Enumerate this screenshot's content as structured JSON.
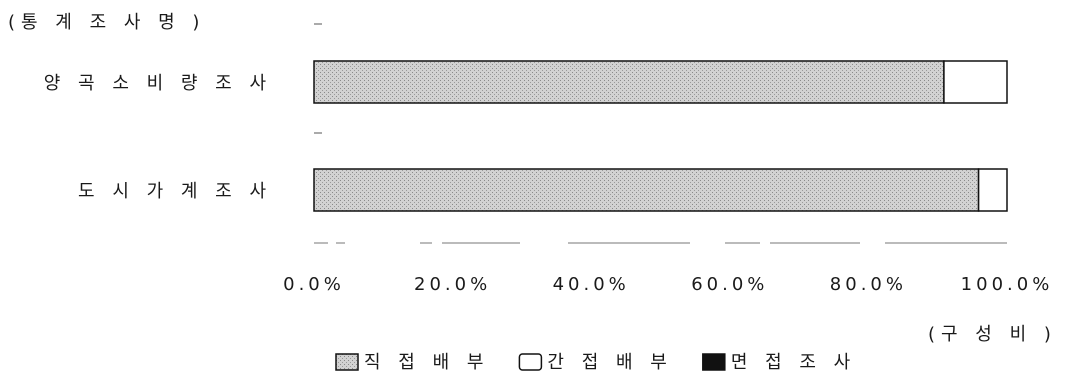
{
  "chart_data": {
    "type": "bar",
    "orientation": "horizontal",
    "stacked": true,
    "title": "",
    "category_axis_title": "(통 계 조 사 명 )",
    "value_axis_title": "(구 성 비 )",
    "categories": [
      "양 곡 소 비 량 조 사",
      "도 시 가 계 조 사"
    ],
    "series": [
      {
        "name": "직 접 배 부",
        "values": [
          90.9,
          95.9
        ],
        "color": "#c9c9c9",
        "pattern": "dotted-gray"
      },
      {
        "name": "간 접 배 부",
        "values": [
          9.1,
          4.1
        ],
        "color": "#ffffff",
        "pattern": "none"
      },
      {
        "name": "면 접 조 사",
        "values": [
          0,
          0
        ],
        "color": "#111111",
        "pattern": "solid"
      }
    ],
    "xlim": [
      0,
      100
    ],
    "x_ticks": [
      "0.0%",
      "20.0%",
      "40.0%",
      "60.0%",
      "80.0%",
      "100.0%"
    ],
    "legend_position": "bottom-center",
    "grid": false
  }
}
